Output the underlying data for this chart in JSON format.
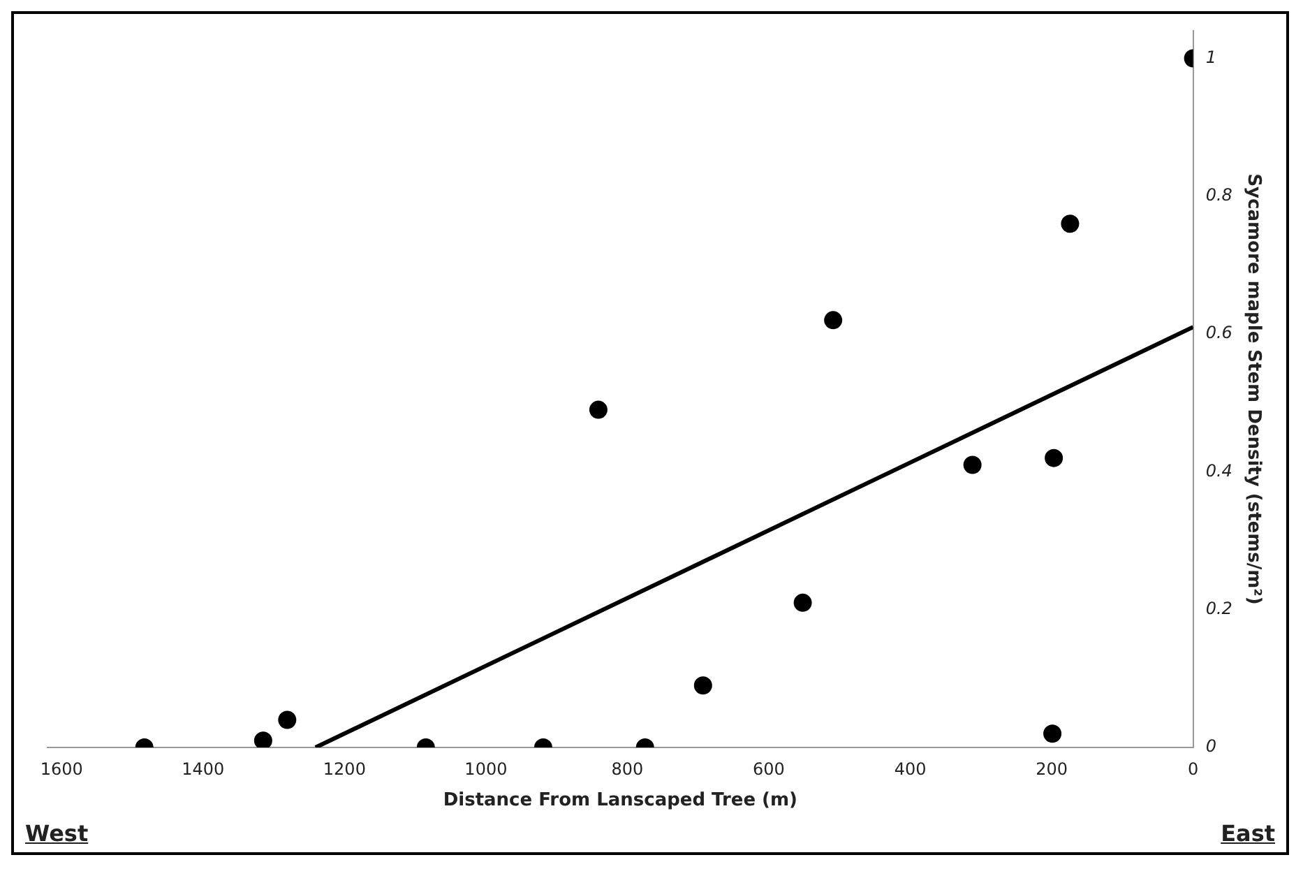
{
  "chart_data": {
    "type": "scatter",
    "xlabel": "Distance From Lanscaped Tree (m)",
    "ylabel": "Sycamore maple Stem Density (stems/m²)",
    "annotations": [
      "West",
      "East"
    ],
    "series": [
      {
        "color": "#000000",
        "marker": "circle",
        "x": [
          1483,
          1315,
          1281,
          1085,
          919,
          775,
          693,
          552,
          509,
          841,
          312,
          197,
          174,
          199,
          0
        ],
        "values": [
          0,
          0.01,
          0.04,
          0,
          0,
          0,
          0.09,
          0.21,
          0.62,
          0.49,
          0.41,
          0.42,
          0.76,
          0.02,
          1
        ]
      },
      {
        "type": "line",
        "marker": "none",
        "color": "#000000",
        "x": [
          1241,
          0
        ],
        "values": [
          0,
          0.61
        ]
      }
    ],
    "xlim": [
      1620,
      0
    ],
    "xticks": [
      1600,
      1400,
      1200,
      1000,
      800,
      600,
      400,
      200,
      0
    ],
    "ylim": [
      0,
      1.04
    ],
    "yticks": [
      0,
      0.2,
      0.4,
      0.6,
      0.8,
      1
    ],
    "grid": false,
    "legend": false
  }
}
